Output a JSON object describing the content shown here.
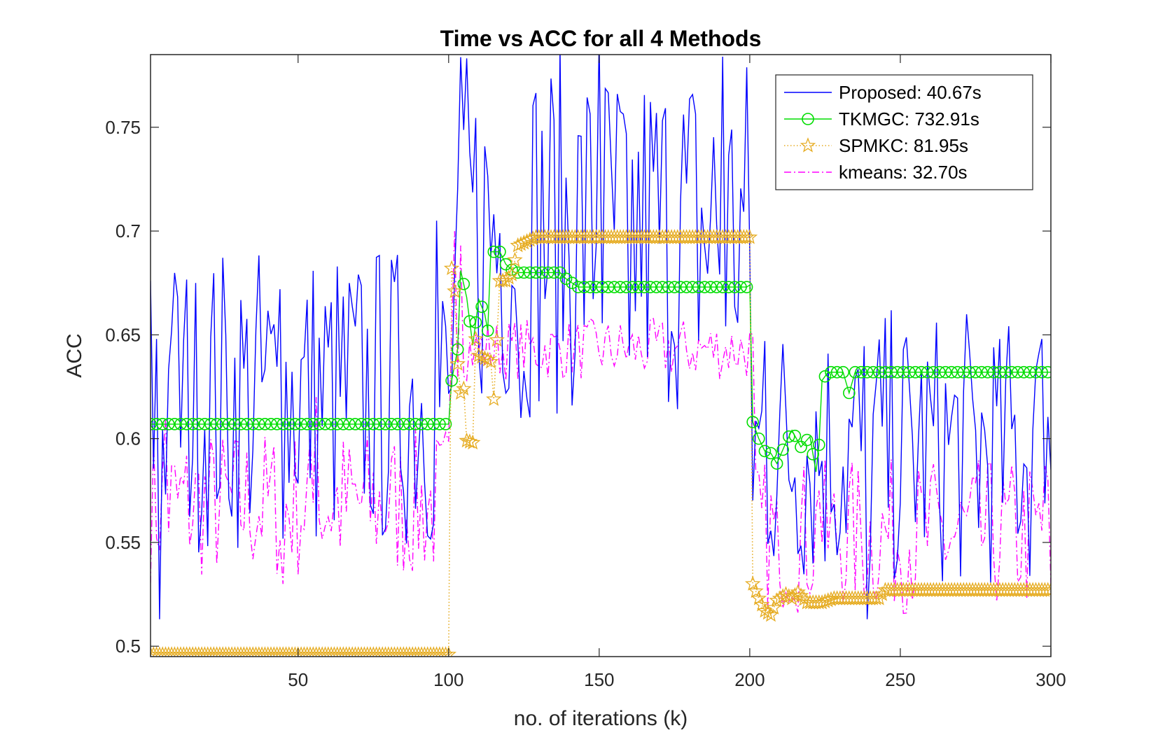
{
  "chart_data": {
    "type": "line",
    "title": "Time vs ACC for all 4 Methods",
    "xlabel": "no. of iterations (k)",
    "ylabel": "ACC",
    "xlim": [
      1,
      300
    ],
    "ylim": [
      0.495,
      0.785
    ],
    "xticks": [
      50,
      100,
      150,
      200,
      250,
      300
    ],
    "yticks": [
      0.5,
      0.55,
      0.6,
      0.65,
      0.7,
      0.75
    ],
    "grid": false,
    "legend_position": "top-right",
    "series": [
      {
        "name": "Proposed: 40.67s",
        "color": "#0000ff",
        "style": "solid",
        "marker": "none",
        "segments": [
          {
            "x0": 1,
            "x1": 100,
            "center": 0.62,
            "amp": 0.05,
            "peaks": [
              [
                4,
                0.513
              ],
              [
                8,
                0.652
              ],
              [
                16,
                0.675
              ],
              [
                44,
                0.672
              ],
              [
                70,
                0.679
              ],
              [
                96,
                0.705
              ]
            ]
          },
          {
            "x0": 101,
            "x1": 200,
            "center": 0.7,
            "amp": 0.06,
            "peaks": [
              [
                101,
                0.625
              ],
              [
                124,
                0.61
              ],
              [
                150,
                0.795
              ],
              [
                160,
                0.64
              ],
              [
                191,
                0.784
              ],
              [
                200,
                0.69
              ]
            ]
          },
          {
            "x0": 201,
            "x1": 300,
            "center": 0.595,
            "amp": 0.045,
            "peaks": [
              [
                205,
                0.647
              ],
              [
                239,
                0.513
              ],
              [
                283,
                0.648
              ],
              [
                297,
                0.648
              ],
              [
                300,
                0.585
              ]
            ]
          }
        ]
      },
      {
        "name": "TKMGC: 732.91s",
        "color": "#00dd00",
        "style": "solid",
        "marker": "circle",
        "points": [
          [
            1,
            0.607
          ],
          [
            100,
            0.607
          ],
          [
            101,
            0.628
          ],
          [
            103,
            0.643
          ],
          [
            104,
            0.681
          ],
          [
            106,
            0.668
          ],
          [
            108,
            0.645
          ],
          [
            110,
            0.667
          ],
          [
            112,
            0.66
          ],
          [
            113,
            0.652
          ],
          [
            114,
            0.69
          ],
          [
            117,
            0.69
          ],
          [
            119,
            0.684
          ],
          [
            122,
            0.68
          ],
          [
            137,
            0.68
          ],
          [
            139,
            0.677
          ],
          [
            143,
            0.673
          ],
          [
            199,
            0.673
          ],
          [
            200,
            0.674
          ],
          [
            201,
            0.608
          ],
          [
            203,
            0.6
          ],
          [
            205,
            0.594
          ],
          [
            207,
            0.593
          ],
          [
            209,
            0.588
          ],
          [
            212,
            0.598
          ],
          [
            214,
            0.604
          ],
          [
            217,
            0.596
          ],
          [
            220,
            0.601
          ],
          [
            222,
            0.584
          ],
          [
            223,
            0.597
          ],
          [
            224,
            0.628
          ],
          [
            226,
            0.632
          ],
          [
            231,
            0.632
          ],
          [
            233,
            0.622
          ],
          [
            235,
            0.632
          ],
          [
            300,
            0.632
          ]
        ],
        "marker_step": 2
      },
      {
        "name": "SPMKC: 81.95s",
        "color": "#e6ac22",
        "style": "dotted",
        "marker": "star",
        "points": [
          [
            1,
            0.496
          ],
          [
            100,
            0.496
          ],
          [
            101,
            0.682
          ],
          [
            102,
            0.671
          ],
          [
            103,
            0.636
          ],
          [
            104,
            0.622
          ],
          [
            105,
            0.624
          ],
          [
            106,
            0.599
          ],
          [
            108,
            0.598
          ],
          [
            109,
            0.648
          ],
          [
            110,
            0.64
          ],
          [
            113,
            0.638
          ],
          [
            114,
            0.637
          ],
          [
            115,
            0.619
          ],
          [
            117,
            0.676
          ],
          [
            119,
            0.676
          ],
          [
            121,
            0.679
          ],
          [
            123,
            0.693
          ],
          [
            126,
            0.695
          ],
          [
            129,
            0.697
          ],
          [
            200,
            0.697
          ],
          [
            201,
            0.53
          ],
          [
            203,
            0.523
          ],
          [
            205,
            0.517
          ],
          [
            207,
            0.515
          ],
          [
            209,
            0.522
          ],
          [
            212,
            0.525
          ],
          [
            214,
            0.523
          ],
          [
            216,
            0.526
          ],
          [
            219,
            0.521
          ],
          [
            224,
            0.521
          ],
          [
            228,
            0.523
          ],
          [
            243,
            0.523
          ],
          [
            245,
            0.527
          ],
          [
            300,
            0.527
          ]
        ],
        "marker_step": 1
      },
      {
        "name": "kmeans: 32.70s",
        "color": "#ff00ff",
        "style": "dashdot",
        "marker": "none",
        "segments": [
          {
            "x0": 1,
            "x1": 100,
            "center": 0.568,
            "amp": 0.025,
            "peaks": [
              [
                6,
                0.61
              ],
              [
                45,
                0.53
              ],
              [
                56,
                0.62
              ],
              [
                99,
                0.603
              ]
            ]
          },
          {
            "x0": 101,
            "x1": 200,
            "center": 0.643,
            "amp": 0.01,
            "peaks": [
              [
                102,
                0.7
              ],
              [
                104,
                0.693
              ]
            ]
          },
          {
            "x0": 201,
            "x1": 300,
            "center": 0.553,
            "amp": 0.025,
            "peaks": [
              [
                201,
                0.65
              ],
              [
                210,
                0.53
              ],
              [
                223,
                0.575
              ],
              [
                298,
                0.587
              ],
              [
                300,
                0.53
              ]
            ]
          }
        ]
      }
    ]
  }
}
